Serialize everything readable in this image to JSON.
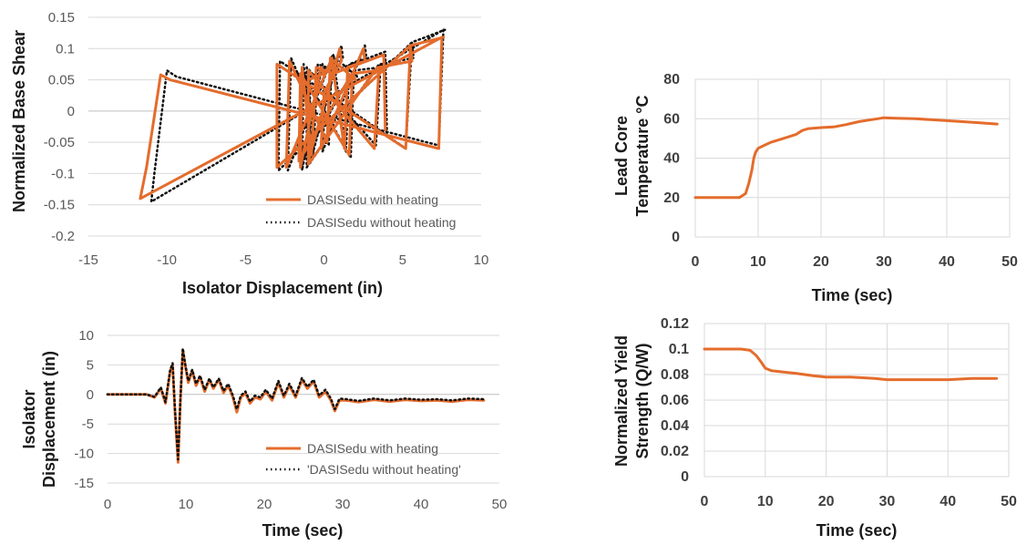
{
  "colors": {
    "heating": "#E46C2C",
    "no_heating": "#111111",
    "grid": "#D9D9D9"
  },
  "chart_data": [
    {
      "type": "line",
      "id": "hysteresis",
      "xlabel": "Isolator Displacement  (in)",
      "ylabel": "Normalized Base Shear",
      "xlim": [
        -15,
        10
      ],
      "ylim": [
        -0.2,
        0.15
      ],
      "xticks": [
        -15,
        -10,
        -5,
        0,
        5,
        10
      ],
      "yticks": [
        0.15,
        0.1,
        0.05,
        0,
        -0.05,
        -0.1,
        -0.15,
        -0.2
      ],
      "ytick_labels": [
        "0.15",
        "0.1",
        "0.05",
        "0",
        "-0.05",
        "-0.1",
        "-0.15",
        "-0.2"
      ],
      "grid": "horizontal",
      "legend_position": "bottom-right",
      "series": [
        {
          "name": "DASISedu with heating",
          "style": "solid",
          "x": [
            7.5,
            7.3,
            -9.8,
            -10.4,
            -11.3,
            -11.7,
            7.5,
            7.6,
            5.5,
            5.2,
            -3.0,
            -3.0,
            5.5,
            5.6,
            3.5,
            3.2,
            -1.0,
            -1.0,
            3.4,
            3.5,
            1.8,
            1.6,
            -1.5,
            -1.6,
            1.8,
            2.0,
            0.4,
            0.2,
            -2.2,
            -2.4,
            0.5,
            0.6,
            -0.5,
            -0.8,
            -1.4,
            -1.5,
            -0.2,
            0.0,
            -1.0,
            -1.0,
            1.0,
            1.1,
            0.0,
            -0.2,
            2.5,
            2.6,
            1.5,
            1.3,
            0.5,
            0.6,
            3.8,
            3.9
          ],
          "y": [
            0.118,
            -0.06,
            0.05,
            0.058,
            -0.09,
            -0.14,
            0.118,
            0.118,
            0.105,
            -0.06,
            0.075,
            -0.09,
            0.105,
            0.08,
            0.07,
            -0.06,
            0.065,
            -0.085,
            0.07,
            0.065,
            0.06,
            -0.07,
            0.06,
            -0.08,
            0.06,
            0.05,
            0.085,
            -0.05,
            0.08,
            -0.09,
            0.085,
            0.06,
            0.07,
            -0.07,
            0.07,
            -0.09,
            0.07,
            0.06,
            0.05,
            -0.08,
            0.1,
            0.08,
            0.03,
            -0.06,
            0.1,
            0.08,
            0.07,
            -0.06,
            0.08,
            0.06,
            0.09,
            -0.03
          ]
        },
        {
          "name": "DASISedu without heating",
          "style": "dotted",
          "x": [
            7.6,
            7.3,
            -9.4,
            -10.0,
            -10.8,
            -11.0,
            7.6,
            7.7,
            5.6,
            5.2,
            -2.8,
            -2.9,
            5.6,
            5.7,
            3.6,
            3.3,
            -1.1,
            -1.1,
            3.5,
            3.6,
            1.9,
            1.7,
            -1.4,
            -1.5,
            1.9,
            2.1,
            0.5,
            0.3,
            -2.1,
            -2.3,
            0.6,
            0.7,
            -0.4,
            -0.7,
            -1.3,
            -1.4,
            -0.1,
            0.1,
            -0.9,
            -0.9,
            1.1,
            1.2,
            0.1,
            -0.1,
            2.6,
            2.7,
            1.6,
            1.4,
            0.6,
            0.7,
            3.9,
            4.0
          ],
          "y": [
            0.13,
            -0.055,
            0.055,
            0.065,
            -0.1,
            -0.145,
            0.13,
            0.13,
            0.11,
            -0.06,
            0.08,
            -0.095,
            0.11,
            0.085,
            0.075,
            -0.055,
            0.07,
            -0.09,
            0.075,
            0.07,
            0.065,
            -0.075,
            0.065,
            -0.085,
            0.065,
            0.055,
            0.09,
            -0.055,
            0.085,
            -0.095,
            0.09,
            0.065,
            0.075,
            -0.075,
            0.075,
            -0.095,
            0.075,
            0.065,
            0.055,
            -0.085,
            0.105,
            0.085,
            0.035,
            -0.065,
            0.105,
            0.085,
            0.075,
            -0.065,
            0.085,
            0.065,
            0.095,
            -0.035
          ]
        }
      ]
    },
    {
      "type": "line",
      "id": "temperature",
      "xlabel": "Time (sec)",
      "ylabel_lines": [
        "Lead Core",
        "Temperature °C"
      ],
      "xlim": [
        0,
        50
      ],
      "ylim": [
        0,
        80
      ],
      "xticks": [
        0,
        10,
        20,
        30,
        40,
        50
      ],
      "yticks": [
        0,
        20,
        40,
        60,
        80
      ],
      "grid": "both",
      "series": [
        {
          "style": "solid",
          "x": [
            0,
            7,
            8,
            8.5,
            9,
            9.3,
            9.6,
            10,
            11,
            12,
            14,
            16,
            17,
            18,
            20,
            22,
            24,
            26,
            28,
            29,
            30,
            32,
            35,
            40,
            45,
            48
          ],
          "y": [
            20,
            20,
            22,
            27,
            34,
            40,
            43,
            45,
            46.5,
            48,
            50,
            52,
            54,
            55,
            55.5,
            55.8,
            57,
            58.5,
            59.5,
            60,
            60.5,
            60.2,
            60,
            59,
            58,
            57.3
          ]
        }
      ]
    },
    {
      "type": "line",
      "id": "displacement_history",
      "xlabel": "Time (sec)",
      "ylabel_lines": [
        "Isolator",
        "Displacement  (in)"
      ],
      "xlim": [
        0,
        50
      ],
      "ylim": [
        -15,
        10
      ],
      "xticks": [
        0,
        10,
        20,
        30,
        40,
        50
      ],
      "yticks": [
        10,
        5,
        0,
        -5,
        -10,
        -15
      ],
      "grid": "horizontal",
      "legend_position": "bottom-right",
      "series": [
        {
          "name": "DASISedu with heating",
          "style": "solid",
          "x": [
            0,
            5,
            6,
            6.8,
            7.4,
            8.0,
            8.3,
            8.6,
            9.0,
            9.3,
            9.6,
            9.9,
            10.3,
            10.8,
            11.3,
            11.8,
            12.4,
            13.0,
            13.5,
            14.2,
            14.8,
            15.4,
            16.0,
            16.5,
            17.0,
            17.6,
            18.2,
            18.8,
            19.5,
            20.2,
            21.0,
            21.8,
            22.5,
            23.2,
            24.0,
            24.8,
            25.5,
            26.3,
            27.0,
            27.8,
            28.5,
            29.0,
            29.6,
            30.5,
            32,
            34,
            36,
            38,
            40,
            42,
            44,
            46,
            48
          ],
          "y": [
            0,
            0,
            -0.5,
            1,
            -1.5,
            4,
            5,
            -3,
            -11.5,
            -1,
            7.5,
            5,
            2,
            4,
            1.5,
            3,
            0.5,
            2.5,
            1,
            2.5,
            0.3,
            1.5,
            -0.5,
            -3,
            -0.5,
            0.2,
            -1.5,
            -0.5,
            -0.8,
            0.5,
            -1,
            2,
            -0.5,
            1.5,
            -0.5,
            2.5,
            1,
            2.2,
            -0.5,
            0.5,
            -1,
            -2.8,
            -1,
            -1,
            -1.3,
            -0.9,
            -1.2,
            -0.9,
            -1.1,
            -1.0,
            -1.2,
            -0.9,
            -1
          ]
        },
        {
          "name": "'DASISedu without heating'",
          "style": "dotted",
          "x": [
            0,
            5,
            6,
            6.8,
            7.4,
            8.0,
            8.3,
            8.6,
            9.0,
            9.3,
            9.6,
            9.9,
            10.3,
            10.8,
            11.3,
            11.8,
            12.4,
            13.0,
            13.5,
            14.2,
            14.8,
            15.4,
            16.0,
            16.5,
            17.0,
            17.6,
            18.2,
            18.8,
            19.5,
            20.2,
            21.0,
            21.8,
            22.5,
            23.2,
            24.0,
            24.8,
            25.5,
            26.3,
            27.0,
            27.8,
            28.5,
            29.0,
            29.6,
            30.5,
            32,
            34,
            36,
            38,
            40,
            42,
            44,
            46,
            48
          ],
          "y": [
            0,
            0,
            -0.4,
            1.2,
            -1.3,
            4.2,
            5.3,
            -2.5,
            -11,
            -0.6,
            7.8,
            5.3,
            2.3,
            4.2,
            1.8,
            3.2,
            0.8,
            2.7,
            1.2,
            2.7,
            0.6,
            1.8,
            -0.2,
            -2.5,
            -0.2,
            0.5,
            -1.2,
            -0.2,
            -0.5,
            0.8,
            -0.7,
            2.3,
            -0.2,
            1.8,
            -0.2,
            2.8,
            1.3,
            2.5,
            -0.2,
            0.8,
            -0.7,
            -2.5,
            -0.7,
            -0.8,
            -1.1,
            -0.7,
            -1.0,
            -0.7,
            -0.9,
            -0.8,
            -1.0,
            -0.7,
            -0.8
          ]
        }
      ]
    },
    {
      "type": "line",
      "id": "yield_strength",
      "xlabel": "Time (sec)",
      "ylabel_lines": [
        "Normalized Yield",
        "Strength (Q/W)"
      ],
      "xlim": [
        0,
        50
      ],
      "ylim": [
        0,
        0.12
      ],
      "xticks": [
        0,
        10,
        20,
        30,
        40,
        50
      ],
      "yticks": [
        0,
        0.02,
        0.04,
        0.06,
        0.08,
        0.1,
        0.12
      ],
      "ytick_labels": [
        "0",
        "0.02",
        "0.04",
        "0.06",
        "0.08",
        "0.1",
        "0.12"
      ],
      "grid": "both",
      "series": [
        {
          "style": "solid",
          "x": [
            0,
            6,
            7.5,
            8.5,
            9.3,
            10,
            11,
            13,
            15,
            18,
            20,
            24,
            28,
            30,
            33,
            36,
            40,
            44,
            48
          ],
          "y": [
            0.1,
            0.1,
            0.099,
            0.095,
            0.09,
            0.085,
            0.083,
            0.082,
            0.081,
            0.079,
            0.078,
            0.078,
            0.077,
            0.076,
            0.076,
            0.076,
            0.076,
            0.077,
            0.077
          ]
        }
      ]
    }
  ]
}
